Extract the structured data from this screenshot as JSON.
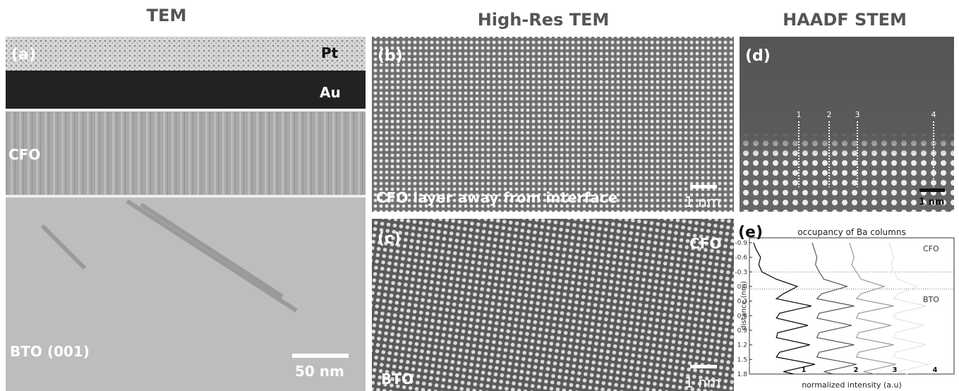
{
  "headers": [
    "TEM",
    "High-Res TEM",
    "HAADF STEM"
  ],
  "panels": {
    "a": {
      "label": "(a)",
      "layers": [
        "Pt",
        "Au",
        "CFO",
        "BTO (001)"
      ],
      "scale_bar": "50 nm"
    },
    "b": {
      "label": "(b)",
      "caption": "CFO layer away from interface",
      "scale_bar": "1 nm"
    },
    "c": {
      "label": "(c)",
      "top_right": "CFO",
      "bottom_left": "BTO",
      "scale_bar": "1 nm"
    },
    "d": {
      "label": "(d)",
      "column_markers": [
        "1",
        "2",
        "3",
        "4"
      ],
      "scale_bar": "1 nm"
    }
  },
  "chart_data": {
    "type": "line",
    "label": "(e)",
    "title": "occupancy of Ba columns",
    "ylabel": "distance (nm)",
    "xlabel": "normalized intensity (a.u)",
    "y": [
      -0.9,
      -0.75,
      -0.6,
      -0.45,
      -0.3,
      -0.15,
      0,
      0.15,
      0.25,
      0.4,
      0.55,
      0.65,
      0.8,
      0.95,
      1.05,
      1.2,
      1.35,
      1.45,
      1.6,
      1.75,
      1.8
    ],
    "series": [
      {
        "name": "1",
        "color": "#000000",
        "values": [
          0.09,
          0.15,
          0.24,
          0.2,
          0.27,
          0.58,
          1.03,
          0.73,
          0.58,
          1.33,
          0.65,
          0.58,
          1.26,
          0.61,
          0.58,
          1.3,
          0.65,
          0.58,
          1.41,
          0.73,
          0.95
        ]
      },
      {
        "name": "2",
        "color": "#555555",
        "values": [
          1.35,
          1.4,
          1.45,
          1.42,
          1.5,
          1.6,
          2.1,
          1.55,
          1.45,
          2.25,
          1.5,
          1.45,
          2.2,
          1.5,
          1.45,
          2.25,
          1.5,
          1.45,
          2.3,
          1.6,
          1.8
        ]
      },
      {
        "name": "3",
        "color": "#999999",
        "values": [
          2.15,
          2.2,
          2.25,
          2.2,
          2.3,
          2.4,
          2.9,
          2.4,
          2.3,
          3.1,
          2.35,
          2.3,
          3.05,
          2.35,
          2.3,
          3.1,
          2.35,
          2.3,
          3.15,
          2.45,
          2.7
        ]
      },
      {
        "name": "4",
        "color": "#e4e4e4",
        "values": [
          3.0,
          3.05,
          3.1,
          3.05,
          3.1,
          3.2,
          3.6,
          3.2,
          3.1,
          3.8,
          3.15,
          3.1,
          3.75,
          3.15,
          3.1,
          3.8,
          3.15,
          3.1,
          3.85,
          3.2,
          3.4
        ]
      }
    ],
    "ylim": [
      -1.0,
      1.8
    ],
    "xlim": [
      0,
      4.4
    ],
    "yticks": [
      -0.9,
      -0.6,
      -0.3,
      {
        "value": 0,
        "label": "0.0"
      },
      0.3,
      0.6,
      0.9,
      1.2,
      1.5,
      1.8
    ],
    "reference_lines": [
      -0.3,
      0.05
    ],
    "annotations": [
      "CFO",
      "BTO"
    ]
  }
}
